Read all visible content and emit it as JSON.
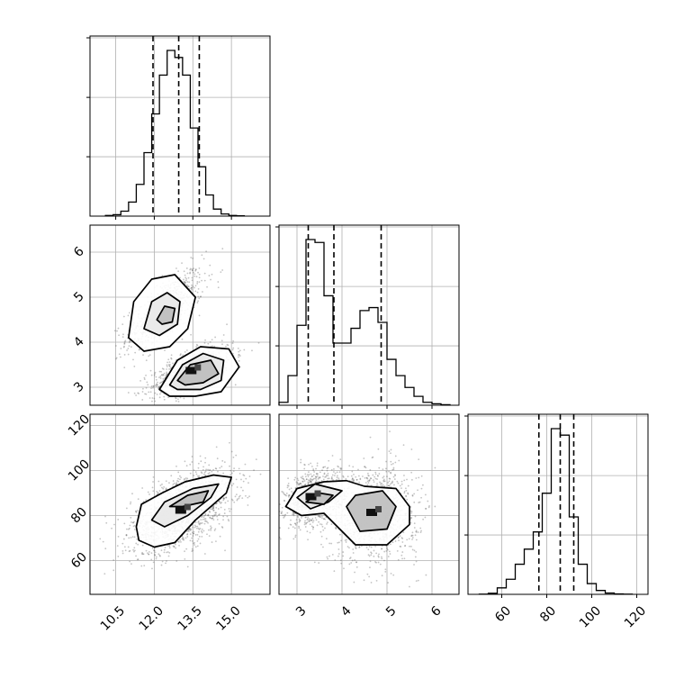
{
  "chart_data": {
    "type": "corner",
    "grid": true,
    "title": "",
    "parameters": [
      {
        "name": "",
        "range": [
          9.5,
          16.5
        ],
        "ticks": [
          "10.5",
          "12.0",
          "13.5",
          "15.0"
        ],
        "tick_values": [
          10.5,
          12.0,
          13.5,
          15.0
        ]
      },
      {
        "name": "",
        "range": [
          2.6,
          6.6
        ],
        "ticks": [
          "3",
          "4",
          "5",
          "6"
        ],
        "tick_values": [
          3,
          4,
          5,
          6
        ]
      },
      {
        "name": "",
        "range": [
          45,
          125
        ],
        "ticks": [
          "60",
          "80",
          "100",
          "120"
        ],
        "tick_values": [
          60,
          80,
          100,
          120
        ]
      }
    ],
    "quantiles": [
      [
        11.95,
        12.95,
        13.75
      ],
      [
        3.25,
        3.82,
        4.87
      ],
      [
        76.5,
        86,
        92
      ]
    ],
    "histograms": [
      {
        "param": 0,
        "bins": [
          10.1,
          10.4,
          10.7,
          11.0,
          11.3,
          11.6,
          11.9,
          12.2,
          12.5,
          12.8,
          13.1,
          13.4,
          13.7,
          14.0,
          14.3,
          14.6,
          14.9,
          15.2,
          15.5
        ],
        "counts": [
          2,
          4,
          14,
          40,
          90,
          180,
          290,
          400,
          470,
          450,
          400,
          250,
          140,
          60,
          20,
          6,
          2,
          1
        ]
      },
      {
        "param": 1,
        "bins": [
          2.6,
          2.8,
          3.0,
          3.2,
          3.4,
          3.6,
          3.8,
          4.0,
          4.2,
          4.4,
          4.6,
          4.8,
          5.0,
          5.2,
          5.4,
          5.6,
          5.8,
          6.0,
          6.2,
          6.4
        ],
        "counts": [
          10,
          100,
          270,
          560,
          550,
          370,
          210,
          210,
          260,
          320,
          330,
          280,
          155,
          100,
          60,
          30,
          10,
          5,
          2
        ]
      },
      {
        "param": 2,
        "bins": [
          50,
          54,
          58,
          62,
          66,
          70,
          74,
          78,
          82,
          86,
          90,
          94,
          98,
          102,
          106,
          110,
          114,
          118
        ],
        "counts": [
          1,
          5,
          30,
          70,
          140,
          210,
          290,
          470,
          770,
          740,
          360,
          140,
          50,
          18,
          6,
          2,
          1
        ]
      }
    ],
    "pairs": [
      {
        "x": 0,
        "y": 1,
        "clusters": [
          {
            "center": [
              12.4,
              4.7
            ],
            "sx": 0.75,
            "sy": 0.45,
            "rho": 0.7,
            "n": 700
          },
          {
            "center": [
              13.5,
              3.35
            ],
            "sx": 0.8,
            "sy": 0.28,
            "rho": 0.6,
            "n": 900
          }
        ],
        "contours": [
          [
            [
              [
                11.0,
                4.1
              ],
              [
                11.2,
                4.9
              ],
              [
                11.9,
                5.4
              ],
              [
                12.8,
                5.5
              ],
              [
                13.6,
                5.0
              ],
              [
                13.3,
                4.3
              ],
              [
                12.6,
                3.9
              ],
              [
                11.6,
                3.8
              ]
            ],
            [
              [
                11.6,
                4.3
              ],
              [
                11.9,
                4.9
              ],
              [
                12.5,
                5.1
              ],
              [
                13.0,
                4.9
              ],
              [
                12.9,
                4.4
              ],
              [
                12.2,
                4.15
              ]
            ],
            [
              [
                12.1,
                4.5
              ],
              [
                12.4,
                4.8
              ],
              [
                12.8,
                4.75
              ],
              [
                12.7,
                4.45
              ],
              [
                12.3,
                4.4
              ]
            ]
          ],
          [
            [
              [
                12.2,
                2.95
              ],
              [
                12.9,
                3.6
              ],
              [
                13.8,
                3.9
              ],
              [
                14.9,
                3.85
              ],
              [
                15.3,
                3.45
              ],
              [
                14.6,
                2.9
              ],
              [
                13.6,
                2.8
              ],
              [
                12.6,
                2.8
              ]
            ],
            [
              [
                12.6,
                3.05
              ],
              [
                13.1,
                3.5
              ],
              [
                13.9,
                3.75
              ],
              [
                14.7,
                3.6
              ],
              [
                14.6,
                3.15
              ],
              [
                13.8,
                2.95
              ],
              [
                12.9,
                2.95
              ]
            ],
            [
              [
                12.9,
                3.15
              ],
              [
                13.4,
                3.5
              ],
              [
                14.2,
                3.6
              ],
              [
                14.5,
                3.3
              ],
              [
                13.9,
                3.1
              ],
              [
                13.2,
                3.05
              ]
            ]
          ]
        ]
      },
      {
        "x": 0,
        "y": 2,
        "clusters": [
          {
            "center": [
              13.1,
              82
            ],
            "sx": 1.0,
            "sy": 9.0,
            "rho": 0.55,
            "n": 1600
          }
        ],
        "contours": [
          [
            [
              [
                11.3,
                75
              ],
              [
                11.5,
                85
              ],
              [
                12.3,
                90
              ],
              [
                13.2,
                95
              ],
              [
                14.3,
                98
              ],
              [
                15.0,
                97
              ],
              [
                14.8,
                90
              ],
              [
                13.6,
                78
              ],
              [
                12.8,
                68
              ],
              [
                12.0,
                66
              ],
              [
                11.4,
                69
              ]
            ],
            [
              [
                11.9,
                78
              ],
              [
                12.4,
                86
              ],
              [
                13.5,
                92
              ],
              [
                14.5,
                94
              ],
              [
                14.2,
                88
              ],
              [
                13.3,
                80
              ],
              [
                12.4,
                75
              ]
            ],
            [
              [
                12.6,
                84
              ],
              [
                13.3,
                89
              ],
              [
                14.1,
                91
              ],
              [
                13.9,
                86
              ],
              [
                13.1,
                84
              ]
            ]
          ]
        ]
      },
      {
        "x": 1,
        "y": 2,
        "clusters": [
          {
            "center": [
              3.35,
              88
            ],
            "sx": 0.3,
            "sy": 6.0,
            "rho": 0.3,
            "n": 900
          },
          {
            "center": [
              4.7,
              81
            ],
            "sx": 0.5,
            "sy": 11.0,
            "rho": 0.0,
            "n": 1100
          }
        ],
        "contours": [
          [
            [
              [
                2.75,
                84
              ],
              [
                3.0,
                92
              ],
              [
                3.6,
                95
              ],
              [
                4.1,
                95.5
              ],
              [
                4.5,
                93
              ],
              [
                5.2,
                92
              ],
              [
                5.5,
                84
              ],
              [
                5.5,
                76
              ],
              [
                5.0,
                67
              ],
              [
                4.3,
                67
              ],
              [
                3.9,
                75
              ],
              [
                3.6,
                81
              ],
              [
                3.1,
                80
              ]
            ],
            [
              [
                3.0,
                88
              ],
              [
                3.4,
                94
              ],
              [
                4.0,
                91
              ],
              [
                3.7,
                86
              ],
              [
                3.3,
                83
              ]
            ],
            [
              [
                4.1,
                84
              ],
              [
                4.3,
                89
              ],
              [
                4.9,
                91
              ],
              [
                5.2,
                84
              ],
              [
                5.0,
                74
              ],
              [
                4.4,
                73
              ]
            ],
            [
              [
                3.2,
                86
              ],
              [
                3.5,
                90
              ],
              [
                3.8,
                89
              ],
              [
                3.6,
                85
              ]
            ]
          ]
        ]
      }
    ]
  }
}
